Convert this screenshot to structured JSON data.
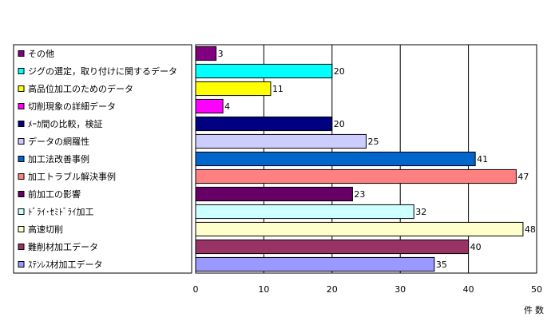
{
  "chart_data": {
    "type": "bar",
    "orientation": "horizontal",
    "categories": [
      "その他",
      "ジグの選定，取り付けに関するデータ",
      "高品位加工のためのデータ",
      "切削現象の詳細データ",
      "ﾒｰｶ間の比較，検証",
      "データの網羅性",
      "加工法改善事例",
      "加工トラブル解決事例",
      "前加工の影響",
      "ﾄﾞﾗｲ･ｾﾐﾄﾞﾗｲ加工",
      "高速切削",
      "難削材加工データ",
      "ｽﾃﾝﾚｽ材加工データ"
    ],
    "values": [
      3,
      20,
      11,
      4,
      20,
      25,
      41,
      47,
      23,
      32,
      48,
      40,
      35
    ],
    "colors": [
      "#800080",
      "#00ffff",
      "#ffff00",
      "#ff00ff",
      "#000080",
      "#ccccff",
      "#0066cc",
      "#ff8080",
      "#660066",
      "#ccffff",
      "#ffffcc",
      "#993366",
      "#9999ff"
    ],
    "xlim": [
      0,
      50
    ],
    "xticks": [
      "0",
      "10",
      "20",
      "30",
      "40",
      "50"
    ],
    "xlabel": "件数",
    "ylabel": "",
    "title": "",
    "grid": "vertical",
    "legend": "left"
  }
}
